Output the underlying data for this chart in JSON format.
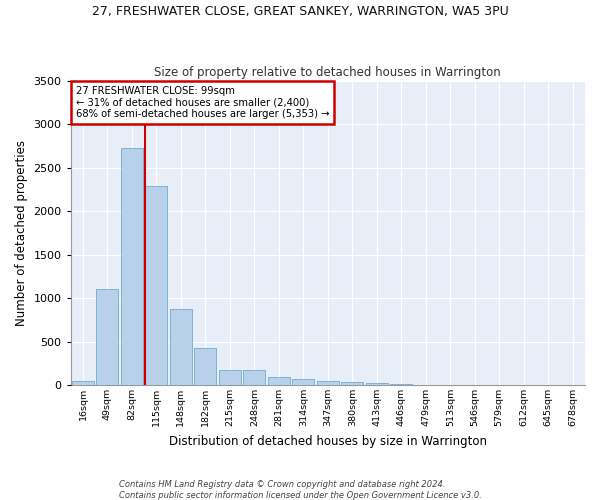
{
  "title": "27, FRESHWATER CLOSE, GREAT SANKEY, WARRINGTON, WA5 3PU",
  "subtitle": "Size of property relative to detached houses in Warrington",
  "xlabel": "Distribution of detached houses by size in Warrington",
  "ylabel": "Number of detached properties",
  "bar_color": "#b8d0ea",
  "bar_edge_color": "#7aafd4",
  "background_color": "#e8eef8",
  "grid_color": "#ffffff",
  "fig_background_color": "#ffffff",
  "annotation_box_color": "#ffffff",
  "annotation_border_color": "#cc0000",
  "property_line_color": "#cc0000",
  "footer1": "Contains HM Land Registry data © Crown copyright and database right 2024.",
  "footer2": "Contains public sector information licensed under the Open Government Licence v3.0.",
  "annotation_line1": "27 FRESHWATER CLOSE: 99sqm",
  "annotation_line2": "← 31% of detached houses are smaller (2,400)",
  "annotation_line3": "68% of semi-detached houses are larger (5,353) →",
  "categories": [
    "16sqm",
    "49sqm",
    "82sqm",
    "115sqm",
    "148sqm",
    "182sqm",
    "215sqm",
    "248sqm",
    "281sqm",
    "314sqm",
    "347sqm",
    "380sqm",
    "413sqm",
    "446sqm",
    "479sqm",
    "513sqm",
    "546sqm",
    "579sqm",
    "612sqm",
    "645sqm",
    "678sqm"
  ],
  "values": [
    50,
    1100,
    2730,
    2290,
    880,
    430,
    170,
    170,
    90,
    65,
    50,
    30,
    20,
    15,
    5,
    3,
    2,
    1,
    0,
    0,
    0
  ],
  "ylim": [
    0,
    3500
  ],
  "yticks": [
    0,
    500,
    1000,
    1500,
    2000,
    2500,
    3000,
    3500
  ],
  "property_line_x": 2.515
}
